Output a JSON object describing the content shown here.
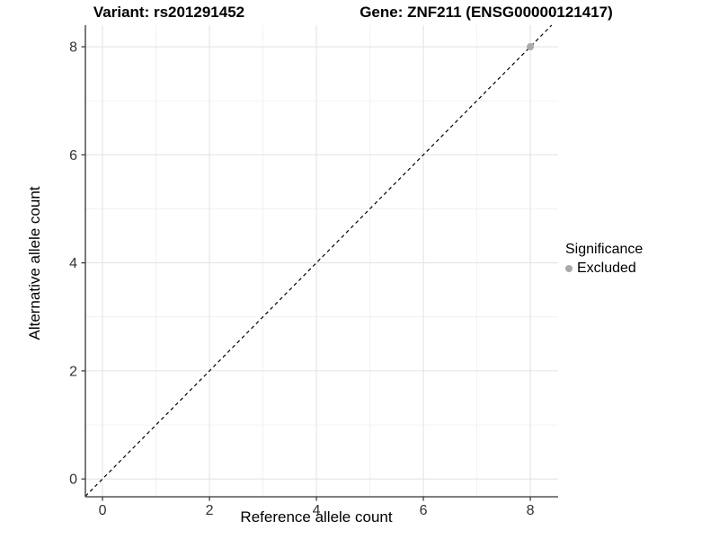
{
  "chart_data": {
    "type": "scatter",
    "titles": {
      "left": "Variant: rs201291452",
      "right": "Gene: ZNF211 (ENSG00000121417)"
    },
    "xlabel": "Reference allele count",
    "ylabel": "Alternative allele count",
    "xlim": [
      -0.32,
      8.52
    ],
    "ylim": [
      -0.33,
      8.4
    ],
    "x_ticks": [
      0,
      2,
      4,
      6,
      8
    ],
    "y_ticks": [
      0,
      2,
      4,
      6,
      8
    ],
    "x_minor_ticks": [
      1,
      3,
      5,
      7
    ],
    "y_minor_ticks": [
      1,
      3,
      5,
      7
    ],
    "grid": "major+minor",
    "series": [
      {
        "name": "Excluded",
        "marker": "circle",
        "color": "#A9A9A9",
        "points": [
          {
            "x": 8,
            "y": 8
          }
        ]
      }
    ],
    "annotations": [
      {
        "type": "reference-line",
        "equation": "y = x",
        "style": "dashed",
        "color": "#000000"
      }
    ],
    "legend": {
      "title": "Significance",
      "position": "right",
      "entries": [
        {
          "label": "Excluded",
          "color": "#A9A9A9"
        }
      ]
    },
    "style_colors": {
      "background": "#FFFFFF",
      "grid_major": "#E4E4E4",
      "grid_minor": "#F0F0F0",
      "axis_line": "#333333",
      "tick_mark": "#333333",
      "tick_label": "#333333",
      "text": "#000000"
    }
  }
}
